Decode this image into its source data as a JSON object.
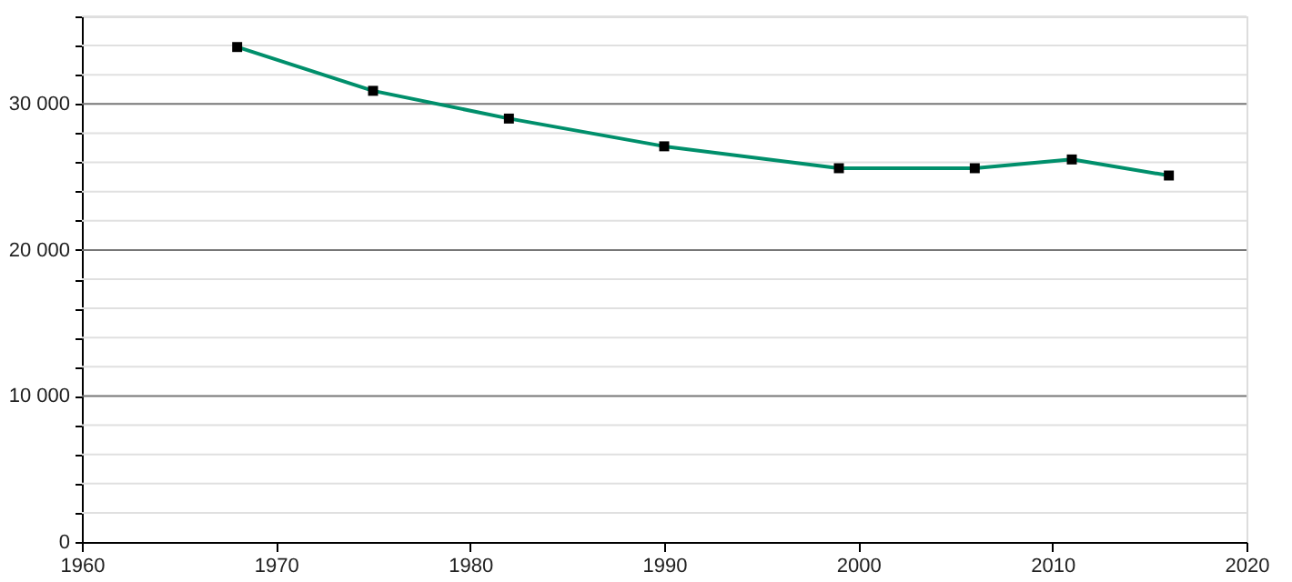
{
  "chart_data": {
    "type": "line",
    "x": [
      1968,
      1975,
      1982,
      1990,
      1999,
      2006,
      2011,
      2016
    ],
    "series": [
      {
        "color": "#008f6b",
        "values": [
          33900,
          30900,
          29000,
          27100,
          25600,
          25600,
          26200,
          25100
        ]
      }
    ],
    "marker": "square",
    "line_style": "solid",
    "grid": "y",
    "xlim": [
      1960,
      2020
    ],
    "xticks": [
      1960,
      1970,
      1980,
      1990,
      2000,
      2010,
      2020
    ],
    "ylim": [
      0,
      36000
    ],
    "yticks": [
      0,
      {
        "value": 2000,
        "label": null
      },
      {
        "value": 4000,
        "label": null
      },
      {
        "value": 6000,
        "label": null
      },
      {
        "value": 8000,
        "label": null
      },
      {
        "value": 10000,
        "label": "10 000"
      },
      {
        "value": 12000,
        "label": null
      },
      {
        "value": 14000,
        "label": null
      },
      {
        "value": 16000,
        "label": null
      },
      {
        "value": 18000,
        "label": null
      },
      {
        "value": 20000,
        "label": "20 000"
      },
      {
        "value": 22000,
        "label": null
      },
      {
        "value": 24000,
        "label": null
      },
      {
        "value": 26000,
        "label": null
      },
      {
        "value": 28000,
        "label": null
      },
      {
        "value": 30000,
        "label": "30 000"
      },
      {
        "value": 32000,
        "label": null
      },
      {
        "value": 34000,
        "label": null
      },
      {
        "value": 36000,
        "label": null
      }
    ]
  }
}
